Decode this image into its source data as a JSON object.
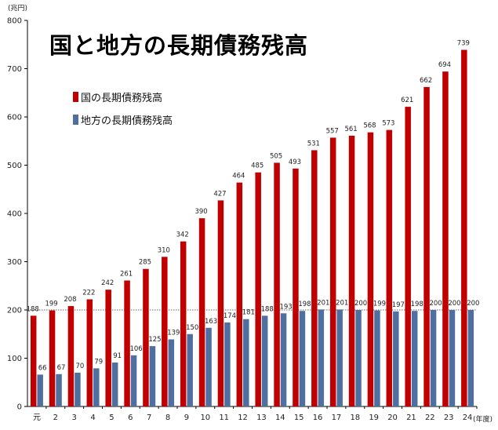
{
  "chart_data": {
    "type": "bar",
    "title": "国と地方の長期債務残高",
    "y_unit": "(兆円)",
    "x_unit": "(年度)",
    "ylim": [
      0,
      800
    ],
    "yticks": [
      0,
      100,
      200,
      300,
      400,
      500,
      600,
      700,
      800
    ],
    "categories": [
      "元",
      "2",
      "3",
      "4",
      "5",
      "6",
      "7",
      "8",
      "9",
      "10",
      "11",
      "12",
      "13",
      "14",
      "15",
      "16",
      "17",
      "18",
      "19",
      "20",
      "21",
      "22",
      "23",
      "24"
    ],
    "series": [
      {
        "name": "国の長期債務残高",
        "color": "#c00000",
        "values": [
          188,
          199,
          208,
          222,
          242,
          261,
          285,
          310,
          342,
          390,
          427,
          464,
          485,
          505,
          493,
          531,
          557,
          561,
          568,
          573,
          621,
          662,
          694,
          739
        ]
      },
      {
        "name": "地方の長期債務残高",
        "color": "#4f6fa0",
        "values": [
          66,
          67,
          70,
          79,
          91,
          106,
          125,
          139,
          150,
          163,
          174,
          181,
          188,
          193,
          198,
          201,
          201,
          200,
          199,
          197,
          198,
          200,
          200,
          200
        ]
      }
    ],
    "reference_line": 200,
    "legend_position": "top-left"
  }
}
